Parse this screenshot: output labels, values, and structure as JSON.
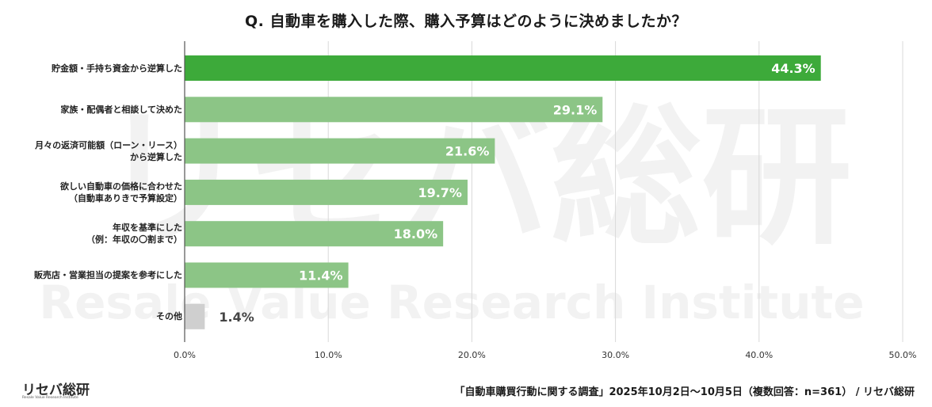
{
  "chart_data": {
    "type": "bar",
    "orientation": "horizontal",
    "title": "Q. 自動車を購入した際、購入予算はどのように決めましたか？",
    "categories": [
      [
        "貯金額・手持ち資金から逆算した"
      ],
      [
        "家族・配偶者と相談して決めた"
      ],
      [
        "月々の返済可能額（ローン・リース）",
        "から逆算した"
      ],
      [
        "欲しい自動車の価格に合わせた",
        "（自動車ありきで予算設定）"
      ],
      [
        "年収を基準にした",
        "（例：年収の〇割まで）"
      ],
      [
        "販売店・営業担当の提案を参考にした"
      ],
      [
        "その他"
      ]
    ],
    "values": [
      44.3,
      29.1,
      21.6,
      19.7,
      18.0,
      11.4,
      1.4
    ],
    "value_labels": [
      "44.3%",
      "29.1%",
      "21.6%",
      "19.7%",
      "18.0%",
      "11.4%",
      "1.4%"
    ],
    "xlim": [
      0,
      50
    ],
    "x_ticks": [
      "0.0%",
      "10.0%",
      "20.0%",
      "30.0%",
      "40.0%",
      "50.0%"
    ],
    "grid": true,
    "colors": {
      "highlight": "#3daa3a",
      "default": "#8cc586",
      "other": "#cfcfcf",
      "grid": "#d9d9d9",
      "axis": "#555555"
    }
  },
  "footer": {
    "logo_text": "リセバ総研",
    "logo_subtext": "Resale Value Research Institute",
    "source": "「自動車購買行動に関する調査」2025年10月2日〜10月5日（複数回答：n=361） / リセバ総研"
  },
  "watermark": {
    "text_main": "リセバ総研",
    "text_sub": "Resale Value Research Institute"
  }
}
